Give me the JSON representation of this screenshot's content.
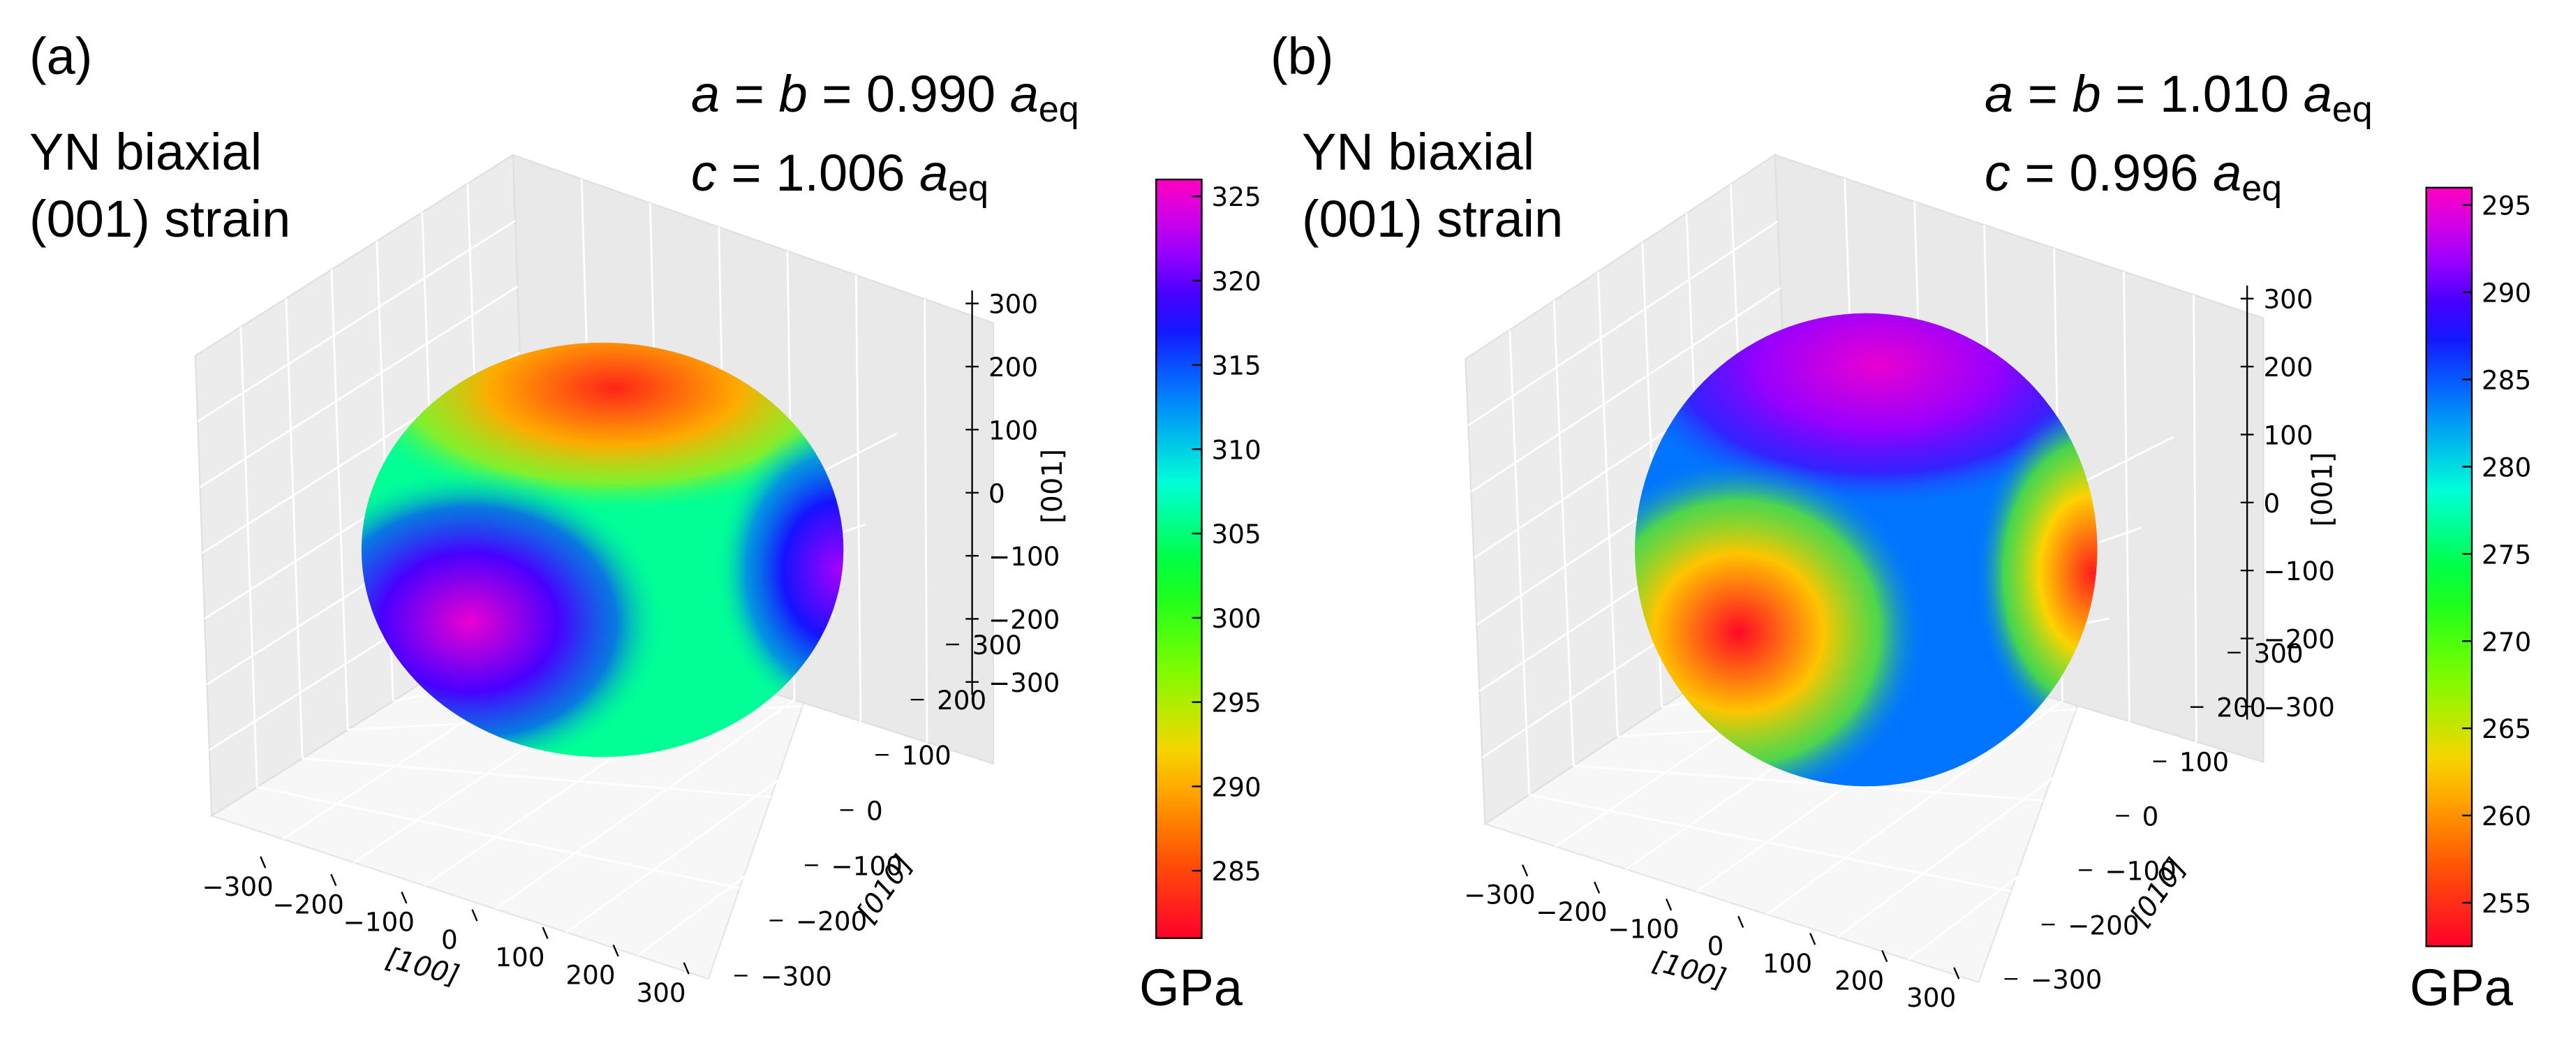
{
  "chart_data": [
    {
      "type": "3d-surface",
      "panel_label": "(a)",
      "material": [
        "YN biaxial",
        "(001) strain"
      ],
      "strain": {
        "line1": {
          "lhs_a": "a",
          "eq1": " = ",
          "lhs_b": "b",
          "eq2": " = 0.990 ",
          "sym": "a",
          "sub": "eq"
        },
        "line2": {
          "lhs": "c",
          "eq": " = 1.006 ",
          "sym": "a",
          "sub": "eq"
        }
      },
      "axes": {
        "x": {
          "label": "[100]",
          "ticks": [
            -300,
            -200,
            -100,
            0,
            100,
            200,
            300
          ]
        },
        "y": {
          "label": "[010]",
          "ticks": [
            -300,
            -200,
            -100,
            0,
            100,
            200,
            300
          ]
        },
        "z": {
          "label": "[001]",
          "ticks": [
            -300,
            -200,
            -100,
            0,
            100,
            200,
            300
          ]
        }
      },
      "colorbar": {
        "min": 281,
        "max": 326,
        "ticks": [
          285,
          290,
          295,
          300,
          305,
          310,
          315,
          320,
          325
        ],
        "unit": "GPa",
        "colormap": "gist_rainbow"
      },
      "surface_features": [
        {
          "location": "top",
          "value": 283
        },
        {
          "location": "left-lower",
          "value": 325
        },
        {
          "location": "right",
          "value": 322
        },
        {
          "location": "middle band",
          "value": 306
        }
      ]
    },
    {
      "type": "3d-surface",
      "panel_label": "(b)",
      "material": [
        "YN biaxial",
        "(001) strain"
      ],
      "strain": {
        "line1": {
          "lhs_a": "a",
          "eq1": " = ",
          "lhs_b": "b",
          "eq2": " = 1.010 ",
          "sym": "a",
          "sub": "eq"
        },
        "line2": {
          "lhs": "c",
          "eq": " = 0.996 ",
          "sym": "a",
          "sub": "eq"
        }
      },
      "axes": {
        "x": {
          "label": "[100]",
          "ticks": [
            -300,
            -200,
            -100,
            0,
            100,
            200,
            300
          ]
        },
        "y": {
          "label": "[010]",
          "ticks": [
            -300,
            -200,
            -100,
            0,
            100,
            200,
            300
          ]
        },
        "z": {
          "label": "[001]",
          "ticks": [
            -300,
            -200,
            -100,
            0,
            100,
            200,
            300
          ]
        }
      },
      "colorbar": {
        "min": 252.5,
        "max": 296,
        "ticks": [
          255,
          260,
          265,
          270,
          275,
          280,
          285,
          290,
          295
        ],
        "unit": "GPa",
        "colormap": "gist_rainbow"
      },
      "surface_features": [
        {
          "location": "top",
          "value": 295
        },
        {
          "location": "left-lower",
          "value": 253
        },
        {
          "location": "right",
          "value": 254
        },
        {
          "location": "middle band",
          "value": 284
        }
      ]
    }
  ]
}
